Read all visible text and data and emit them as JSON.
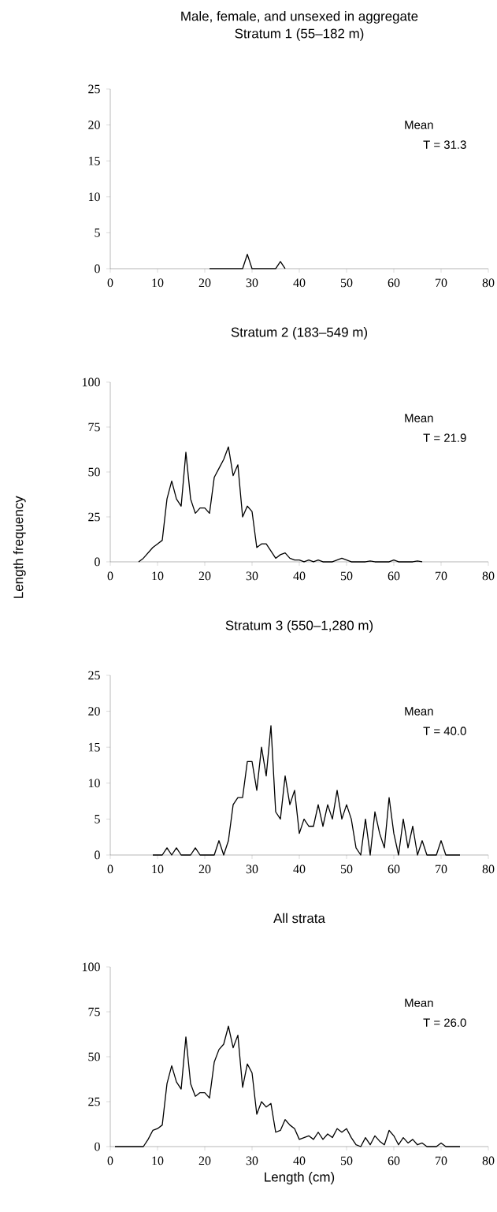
{
  "chart_data": [
    {
      "type": "line",
      "title": "Male, female, and unsexed in aggregate",
      "subtitle": "Stratum 1 (55–182 m)",
      "annotations": [
        "Mean",
        "T = 31.3"
      ],
      "x": [
        21,
        22,
        23,
        24,
        25,
        26,
        27,
        28,
        29,
        30,
        31,
        32,
        33,
        34,
        35,
        36,
        37
      ],
      "values": [
        0,
        0,
        0,
        0,
        0,
        0,
        0,
        0,
        2,
        0,
        0,
        0,
        0,
        0,
        0,
        1,
        0
      ],
      "xlim": [
        0,
        80
      ],
      "xticks": [
        0,
        10,
        20,
        30,
        40,
        50,
        60,
        70,
        80
      ],
      "ylim": [
        0,
        25
      ],
      "yticks": [
        0,
        5,
        10,
        15,
        20,
        25
      ]
    },
    {
      "type": "line",
      "title": "Stratum 2 (183–549 m)",
      "ylabel": "Length frequency",
      "annotations": [
        "Mean",
        "T = 21.9"
      ],
      "x": [
        6,
        7,
        8,
        9,
        10,
        11,
        12,
        13,
        14,
        15,
        16,
        17,
        18,
        19,
        20,
        21,
        22,
        23,
        24,
        25,
        26,
        27,
        28,
        29,
        30,
        31,
        32,
        33,
        34,
        35,
        36,
        37,
        38,
        39,
        40,
        41,
        42,
        43,
        44,
        45,
        46,
        47,
        48,
        49,
        50,
        51,
        52,
        53,
        54,
        55,
        56,
        57,
        58,
        59,
        60,
        61,
        62,
        63,
        64,
        65,
        66
      ],
      "values": [
        0,
        2,
        5,
        8,
        10,
        12,
        35,
        45,
        35,
        31,
        61,
        35,
        27,
        30,
        30,
        27,
        47,
        52,
        57,
        64,
        48,
        54,
        25,
        31,
        28,
        8,
        10,
        10,
        6,
        2,
        4,
        5,
        2,
        1,
        1,
        0,
        1,
        0,
        1,
        0,
        0,
        0,
        1,
        2,
        1,
        0,
        0,
        0,
        0,
        0.5,
        0,
        0,
        0,
        0,
        1,
        0,
        0,
        0,
        0,
        0.5,
        0
      ],
      "xlim": [
        0,
        80
      ],
      "xticks": [
        0,
        10,
        20,
        30,
        40,
        50,
        60,
        70,
        80
      ],
      "ylim": [
        0,
        100
      ],
      "yticks": [
        0,
        25,
        50,
        75,
        100
      ]
    },
    {
      "type": "line",
      "title": "Stratum 3 (550–1,280 m)",
      "annotations": [
        "Mean",
        "T = 40.0"
      ],
      "x": [
        9,
        10,
        11,
        12,
        13,
        14,
        15,
        16,
        17,
        18,
        19,
        20,
        21,
        22,
        23,
        24,
        25,
        26,
        27,
        28,
        29,
        30,
        31,
        32,
        33,
        34,
        35,
        36,
        37,
        38,
        39,
        40,
        41,
        42,
        43,
        44,
        45,
        46,
        47,
        48,
        49,
        50,
        51,
        52,
        53,
        54,
        55,
        56,
        57,
        58,
        59,
        60,
        61,
        62,
        63,
        64,
        65,
        66,
        67,
        68,
        69,
        70,
        71,
        72,
        73,
        74
      ],
      "values": [
        0,
        0,
        0,
        1,
        0,
        1,
        0,
        0,
        0,
        1,
        0,
        0,
        0,
        0,
        2,
        0,
        2,
        7,
        8,
        8,
        13,
        13,
        9,
        15,
        11,
        18,
        6,
        5,
        11,
        7,
        9,
        3,
        5,
        4,
        4,
        7,
        4,
        7,
        5,
        9,
        5,
        7,
        5,
        1,
        0,
        5,
        0,
        6,
        3,
        1,
        8,
        3,
        0,
        5,
        1,
        4,
        0,
        2,
        0,
        0,
        0,
        2,
        0,
        0,
        0,
        0
      ],
      "xlim": [
        0,
        80
      ],
      "xticks": [
        0,
        10,
        20,
        30,
        40,
        50,
        60,
        70,
        80
      ],
      "ylim": [
        0,
        25
      ],
      "yticks": [
        0,
        5,
        10,
        15,
        20,
        25
      ]
    },
    {
      "type": "line",
      "title": "All strata",
      "xlabel": "Length (cm)",
      "annotations": [
        "Mean",
        "T = 26.0"
      ],
      "x": [
        1,
        2,
        3,
        4,
        5,
        6,
        7,
        8,
        9,
        10,
        11,
        12,
        13,
        14,
        15,
        16,
        17,
        18,
        19,
        20,
        21,
        22,
        23,
        24,
        25,
        26,
        27,
        28,
        29,
        30,
        31,
        32,
        33,
        34,
        35,
        36,
        37,
        38,
        39,
        40,
        41,
        42,
        43,
        44,
        45,
        46,
        47,
        48,
        49,
        50,
        51,
        52,
        53,
        54,
        55,
        56,
        57,
        58,
        59,
        60,
        61,
        62,
        63,
        64,
        65,
        66,
        67,
        68,
        69,
        70,
        71,
        72,
        73,
        74
      ],
      "values": [
        0,
        0,
        0,
        0,
        0,
        0,
        0,
        4,
        9,
        10,
        12,
        35,
        45,
        36,
        32,
        61,
        35,
        28,
        30,
        30,
        27,
        47,
        54,
        57,
        67,
        55,
        62,
        33,
        46,
        41,
        18,
        25,
        22,
        24,
        8,
        9,
        15,
        12,
        10,
        4,
        5,
        6,
        4,
        8,
        4,
        7,
        5,
        10,
        8,
        10,
        5,
        1,
        0,
        5,
        1,
        6,
        3,
        1,
        9,
        6,
        1,
        5,
        2,
        4,
        1,
        2,
        0,
        0,
        0,
        2,
        0,
        0,
        0,
        0
      ],
      "xlim": [
        0,
        80
      ],
      "xticks": [
        0,
        10,
        20,
        30,
        40,
        50,
        60,
        70,
        80
      ],
      "ylim": [
        0,
        100
      ],
      "yticks": [
        0,
        25,
        50,
        75,
        100
      ]
    }
  ]
}
